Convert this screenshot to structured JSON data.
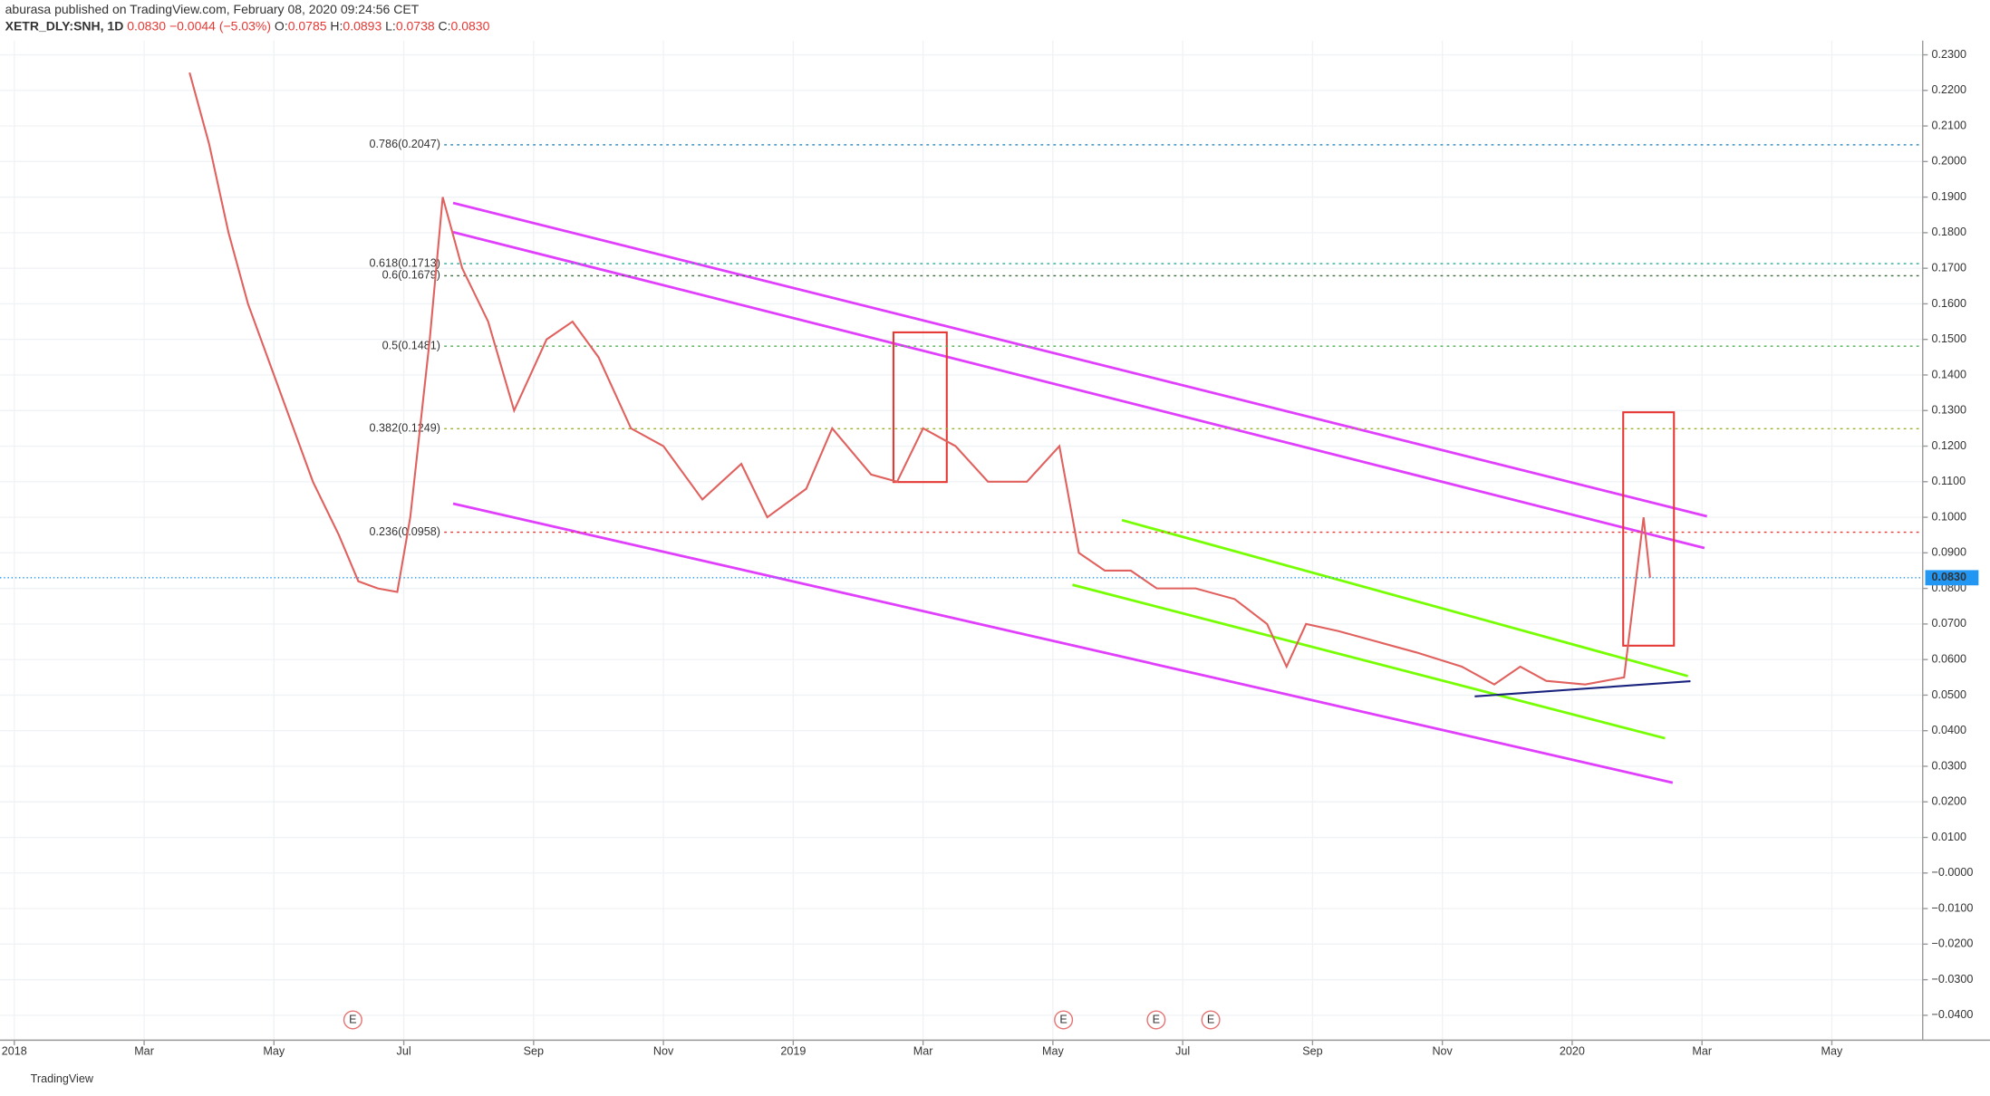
{
  "header": {
    "line1": "aburasa published on TradingView.com, February 08, 2020 09:24:56 CET",
    "line2": [
      "XETR_DLY:SNH, 1D",
      "0.0830",
      "−0.0044 (−5.03%)",
      "O:",
      "0.0785",
      "H:",
      "0.0893",
      "L:",
      "0.0738",
      "C:",
      "0.0830"
    ]
  },
  "footer": {
    "brand": "TradingView"
  },
  "chart_data": {
    "type": "line",
    "x": [
      2.7,
      3.0,
      3.3,
      3.6,
      4.0,
      4.3,
      4.6,
      5.0,
      5.3,
      5.6,
      5.9,
      6.1,
      6.4,
      6.6,
      6.9,
      7.3,
      7.7,
      8.2,
      8.6,
      9.0,
      9.5,
      10.0,
      10.6,
      11.2,
      11.6,
      12.2,
      12.6,
      13.2,
      13.6,
      14.0,
      14.5,
      15.0,
      15.6,
      16.1,
      16.4,
      16.8,
      17.2,
      17.6,
      18.2,
      18.8,
      19.3,
      19.6,
      19.9,
      20.4,
      21.0,
      21.6,
      22.3,
      22.8,
      23.2,
      23.6,
      24.2,
      24.8,
      25.1,
      25.2
    ],
    "series": [
      {
        "name": "SNH",
        "color": "#e0615e",
        "values": [
          0.225,
          0.205,
          0.18,
          0.16,
          0.14,
          0.125,
          0.11,
          0.095,
          0.082,
          0.08,
          0.079,
          0.1,
          0.15,
          0.19,
          0.17,
          0.155,
          0.13,
          0.15,
          0.155,
          0.145,
          0.125,
          0.12,
          0.105,
          0.115,
          0.1,
          0.108,
          0.125,
          0.112,
          0.11,
          0.125,
          0.12,
          0.11,
          0.11,
          0.12,
          0.09,
          0.085,
          0.085,
          0.08,
          0.08,
          0.077,
          0.07,
          0.058,
          0.07,
          0.068,
          0.065,
          0.062,
          0.058,
          0.053,
          0.058,
          0.054,
          0.053,
          0.055,
          0.1,
          0.083
        ]
      }
    ],
    "xlim": [
      -0.22,
      29.4
    ],
    "xticks": [
      {
        "value": 0,
        "label": "2018"
      },
      {
        "value": 2,
        "label": "Mar"
      },
      {
        "value": 4,
        "label": "May"
      },
      {
        "value": 6,
        "label": "Jul"
      },
      {
        "value": 8,
        "label": "Sep"
      },
      {
        "value": 10,
        "label": "Nov"
      },
      {
        "value": 12,
        "label": "2019"
      },
      {
        "value": 14,
        "label": "Mar"
      },
      {
        "value": 16,
        "label": "May"
      },
      {
        "value": 18,
        "label": "Jul"
      },
      {
        "value": 20,
        "label": "Sep"
      },
      {
        "value": 22,
        "label": "Nov"
      },
      {
        "value": 24,
        "label": "2020"
      },
      {
        "value": 26,
        "label": "Mar"
      },
      {
        "value": 28,
        "label": "May"
      }
    ],
    "ylim": [
      -0.047,
      0.234
    ],
    "yticks": [
      {
        "value": 0.23,
        "label": "0.2300"
      },
      {
        "value": 0.22,
        "label": "0.2200"
      },
      {
        "value": 0.21,
        "label": "0.2100"
      },
      {
        "value": 0.2,
        "label": "0.2000"
      },
      {
        "value": 0.19,
        "label": "0.1900"
      },
      {
        "value": 0.18,
        "label": "0.1800"
      },
      {
        "value": 0.17,
        "label": "0.1700"
      },
      {
        "value": 0.16,
        "label": "0.1600"
      },
      {
        "value": 0.15,
        "label": "0.1500"
      },
      {
        "value": 0.14,
        "label": "0.1400"
      },
      {
        "value": 0.13,
        "label": "0.1300"
      },
      {
        "value": 0.12,
        "label": "0.1200"
      },
      {
        "value": 0.11,
        "label": "0.1100"
      },
      {
        "value": 0.1,
        "label": "0.1000"
      },
      {
        "value": 0.09,
        "label": "0.0900"
      },
      {
        "value": 0.08,
        "label": "0.0800"
      },
      {
        "value": 0.07,
        "label": "0.0700"
      },
      {
        "value": 0.06,
        "label": "0.0600"
      },
      {
        "value": 0.05,
        "label": "0.0500"
      },
      {
        "value": 0.04,
        "label": "0.0400"
      },
      {
        "value": 0.03,
        "label": "0.0300"
      },
      {
        "value": 0.02,
        "label": "0.0200"
      },
      {
        "value": 0.01,
        "label": "0.0100"
      },
      {
        "value": 0,
        "label": "−0.0000"
      },
      {
        "value": -0.01,
        "label": "−0.0100"
      },
      {
        "value": -0.02,
        "label": "−0.0200"
      },
      {
        "value": -0.03,
        "label": "−0.0300"
      },
      {
        "value": -0.04,
        "label": "−0.0400"
      }
    ],
    "grid": true,
    "fib_levels": [
      {
        "label": "0.786(0.2047)",
        "value": 0.2047,
        "color": "#3c8fc0"
      },
      {
        "label": "0.618(0.1713)",
        "value": 0.1713,
        "color": "#2aa89a"
      },
      {
        "label": "0.6(0.1679)",
        "value": 0.1679,
        "color": "#3d6b3d"
      },
      {
        "label": "0.5(0.1481)",
        "value": 0.1481,
        "color": "#4caf50"
      },
      {
        "label": "0.382(0.1249)",
        "value": 0.1249,
        "color": "#9ab32e"
      },
      {
        "label": "0.236(0.0958)",
        "value": 0.0958,
        "color": "#e53935"
      }
    ],
    "last_price": {
      "label": "0.0830",
      "value": 0.083,
      "color": "#2196f3"
    },
    "earnings_markers": [
      "E",
      "E",
      "E",
      "E"
    ]
  }
}
